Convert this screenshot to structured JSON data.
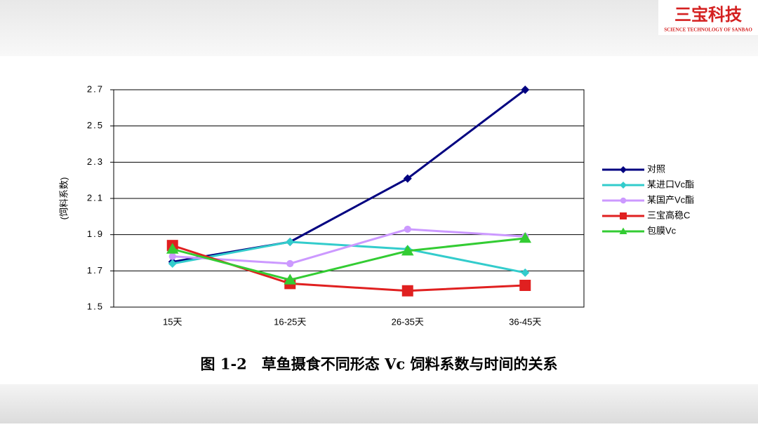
{
  "logo": {
    "name": "三宝科技",
    "subtitle": "SCIENCE TECHNOLOGY OF SANBAO"
  },
  "chart_data": {
    "type": "line",
    "caption": "图 1-2　草鱼摄食不同形态 Vc 饲料系数与时间的关系",
    "y_label": "(饲料系数)",
    "categories": [
      "15天",
      "16-25天",
      "26-35天",
      "36-45天"
    ],
    "ylim": [
      1.5,
      2.7
    ],
    "yticks": [
      1.5,
      1.7,
      1.9,
      2.1,
      2.3,
      2.5,
      2.7
    ],
    "grid": true,
    "legend": "right",
    "series": [
      {
        "name": "对照",
        "color": "#000080",
        "marker": "diamond",
        "values": [
          1.75,
          1.86,
          2.21,
          2.7
        ]
      },
      {
        "name": "某进口Vc酯",
        "color": "#33cccc",
        "marker": "diamond",
        "values": [
          1.74,
          1.86,
          1.82,
          1.69
        ]
      },
      {
        "name": "某国产Vc酯",
        "color": "#cc99ff",
        "marker": "circle",
        "values": [
          1.78,
          1.74,
          1.93,
          1.89
        ]
      },
      {
        "name": "三宝高稳C",
        "color": "#e02020",
        "marker": "square",
        "values": [
          1.84,
          1.63,
          1.59,
          1.62
        ]
      },
      {
        "name": "包膜Vc",
        "color": "#33cc33",
        "marker": "triangle",
        "values": [
          1.82,
          1.65,
          1.81,
          1.88
        ]
      }
    ]
  }
}
